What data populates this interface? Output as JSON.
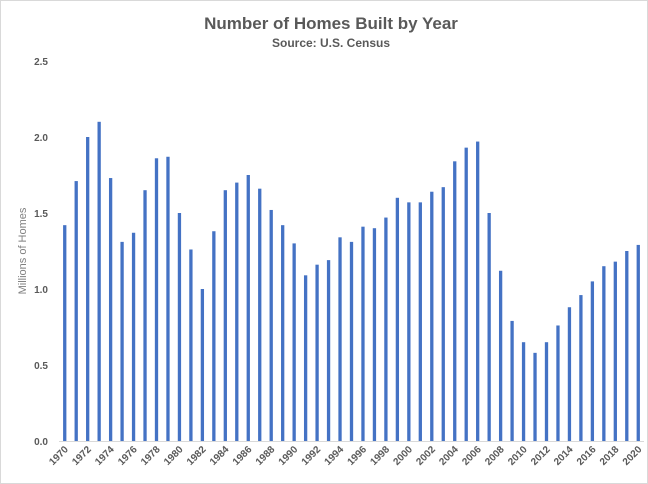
{
  "chart_data": {
    "type": "bar",
    "title": "Number of Homes Built by Year",
    "subtitle": "Source: U.S. Census",
    "xlabel": "",
    "ylabel": "Millions of Homes",
    "ylim": [
      0,
      2.5
    ],
    "yticks": [
      "0.0",
      "0.5",
      "1.0",
      "1.5",
      "2.0",
      "2.5"
    ],
    "grid": false,
    "legend": "none",
    "bar_color": "#4472c4",
    "categories": [
      "1970",
      "1971",
      "1972",
      "1973",
      "1974",
      "1975",
      "1976",
      "1977",
      "1978",
      "1979",
      "1980",
      "1981",
      "1982",
      "1983",
      "1984",
      "1985",
      "1986",
      "1987",
      "1988",
      "1989",
      "1990",
      "1991",
      "1992",
      "1993",
      "1994",
      "1995",
      "1996",
      "1997",
      "1998",
      "1999",
      "2000",
      "2001",
      "2002",
      "2003",
      "2004",
      "2005",
      "2006",
      "2007",
      "2008",
      "2009",
      "2010",
      "2011",
      "2012",
      "2013",
      "2014",
      "2015",
      "2016",
      "2017",
      "2018",
      "2019",
      "2020"
    ],
    "tick_labels": [
      "1970",
      "",
      "1972",
      "",
      "1974",
      "",
      "1976",
      "",
      "1978",
      "",
      "1980",
      "",
      "1982",
      "",
      "1984",
      "",
      "1986",
      "",
      "1988",
      "",
      "1990",
      "",
      "1992",
      "",
      "1994",
      "",
      "1996",
      "",
      "1998",
      "",
      "2000",
      "",
      "2002",
      "",
      "2004",
      "",
      "2006",
      "",
      "2008",
      "",
      "2010",
      "",
      "2012",
      "",
      "2014",
      "",
      "2016",
      "",
      "2018",
      "",
      "2020"
    ],
    "values": [
      1.42,
      1.71,
      2.0,
      2.1,
      1.73,
      1.31,
      1.37,
      1.65,
      1.86,
      1.87,
      1.5,
      1.26,
      1.0,
      1.38,
      1.65,
      1.7,
      1.75,
      1.66,
      1.52,
      1.42,
      1.3,
      1.09,
      1.16,
      1.19,
      1.34,
      1.31,
      1.41,
      1.4,
      1.47,
      1.6,
      1.57,
      1.57,
      1.64,
      1.67,
      1.84,
      1.93,
      1.97,
      1.5,
      1.12,
      0.79,
      0.65,
      0.58,
      0.65,
      0.76,
      0.88,
      0.96,
      1.05,
      1.15,
      1.18,
      1.25,
      1.29
    ]
  }
}
